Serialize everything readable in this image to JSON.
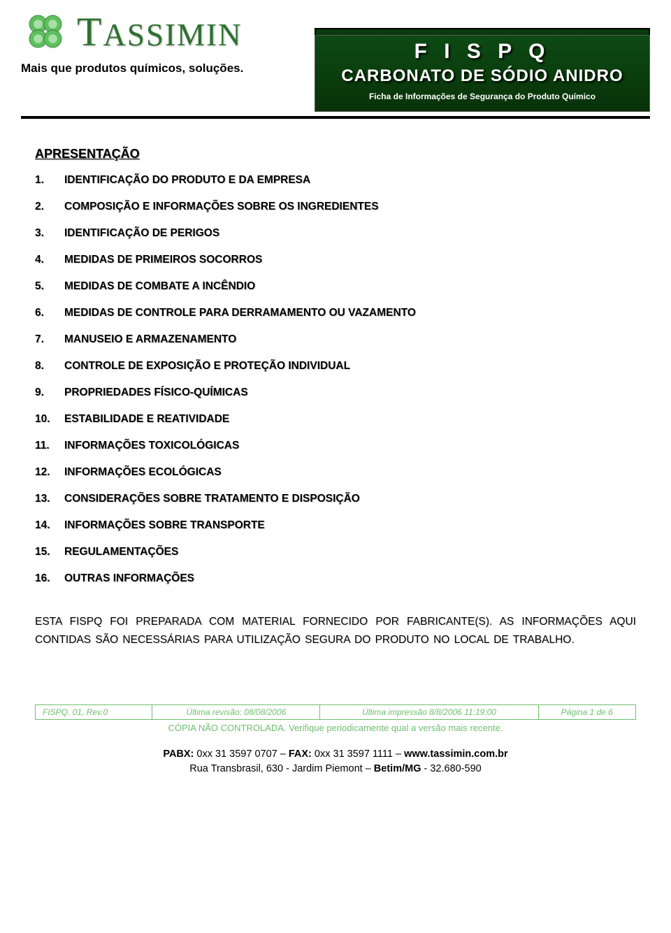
{
  "brand": {
    "name_html": "TASSIMIN",
    "tagline": "Mais que produtos químicos, soluções.",
    "logo_color": "#3d9b3d"
  },
  "banner": {
    "bg_color": "#0a3a10",
    "title": "F I S P Q",
    "subtitle": "CARBONATO DE SÓDIO ANIDRO",
    "description": "Ficha de Informações de Segurança do Produto Químico"
  },
  "section_title": "APRESENTAÇÃO",
  "toc": [
    {
      "n": "1.",
      "t": "IDENTIFICAÇÃO DO PRODUTO E DA EMPRESA"
    },
    {
      "n": "2.",
      "t": "COMPOSIÇÃO E INFORMAÇÕES SOBRE OS INGREDIENTES"
    },
    {
      "n": "3.",
      "t": "IDENTIFICAÇÃO DE PERIGOS"
    },
    {
      "n": "4.",
      "t": "MEDIDAS DE PRIMEIROS SOCORROS"
    },
    {
      "n": "5.",
      "t": "MEDIDAS DE COMBATE A INCÊNDIO"
    },
    {
      "n": "6.",
      "t": "MEDIDAS DE CONTROLE PARA DERRAMAMENTO OU VAZAMENTO"
    },
    {
      "n": "7.",
      "t": "MANUSEIO E ARMAZENAMENTO"
    },
    {
      "n": "8.",
      "t": "CONTROLE DE EXPOSIÇÃO E PROTEÇÃO INDIVIDUAL"
    },
    {
      "n": "9.",
      "t": "PROPRIEDADES FÍSICO-QUÍMICAS"
    },
    {
      "n": "10.",
      "t": "ESTABILIDADE E REATIVIDADE"
    },
    {
      "n": "11.",
      "t": "INFORMAÇÕES TOXICOLÓGICAS"
    },
    {
      "n": "12.",
      "t": "INFORMAÇÕES ECOLÓGICAS"
    },
    {
      "n": "13.",
      "t": "CONSIDERAÇÕES SOBRE TRATAMENTO E DISPOSIÇÃO"
    },
    {
      "n": "14.",
      "t": "INFORMAÇÕES SOBRE TRANSPORTE"
    },
    {
      "n": "15.",
      "t": "REGULAMENTAÇÕES"
    },
    {
      "n": "16.",
      "t": "OUTRAS INFORMAÇÕES"
    }
  ],
  "note": "ESTA FISPQ FOI PREPARADA COM MATERIAL FORNECIDO POR FABRICANTE(S). AS INFORMAÇÕES AQUI CONTIDAS SÃO NECESSÁRIAS PARA UTILIZAÇÃO SEGURA DO PRODUTO NO LOCAL DE TRABALHO.",
  "meta": {
    "color": "#6fbf6f",
    "doc": "FISPQ. 01, Rev.0",
    "revision": "Última revisão: 08/08/2006",
    "printed": "Última impressão 8/8/2006 11:19:00",
    "page": "Página 1 de 6",
    "copy_note": "CÓPIA NÃO CONTROLADA. Verifique periodicamente qual a versão mais recente."
  },
  "contact": {
    "pabx_label": "PABX:",
    "pabx": "0xx 31 3597 0707",
    "fax_label": "FAX:",
    "fax": "0xx 31 3597 1111",
    "web": "www.tassimin.com.br",
    "addr1": "Rua Transbrasil, 630 - Jardim Piemont – ",
    "addr_city": "Betim/MG",
    "addr_zip": " - 32.680-590"
  }
}
